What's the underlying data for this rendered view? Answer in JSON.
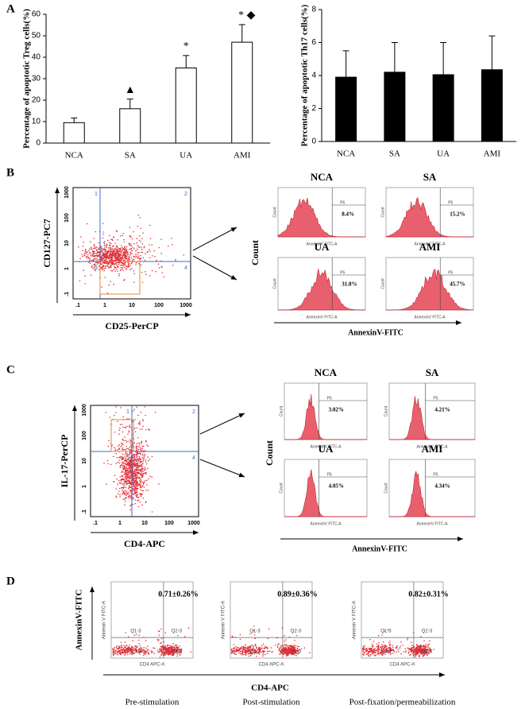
{
  "panel_labels": [
    "A",
    "B",
    "C",
    "D"
  ],
  "chart_data": [
    {
      "type": "bar",
      "y_label": "Percentage of apoptotic Treg cells(%)",
      "categories": [
        "NCA",
        "SA",
        "UA",
        "AMI"
      ],
      "values": [
        9.5,
        16,
        35,
        47
      ],
      "errors": [
        2.2,
        4.5,
        5.8,
        8.2
      ],
      "color": "#ffffff",
      "edgecolor": "#000000",
      "ylim": [
        0,
        60
      ],
      "yticks": [
        0,
        10,
        20,
        30,
        40,
        50,
        60
      ],
      "annotations": [
        {
          "category": "SA",
          "text": "▲"
        },
        {
          "category": "UA",
          "text": "*"
        },
        {
          "category": "AMI",
          "text": "* ◆"
        }
      ]
    },
    {
      "type": "bar",
      "y_label": "Percentage of apoptotic Th17 cells(%)",
      "categories": [
        "NCA",
        "SA",
        "UA",
        "AMI"
      ],
      "values": [
        3.9,
        4.2,
        4.05,
        4.35
      ],
      "errors": [
        1.6,
        1.8,
        1.95,
        2.05
      ],
      "color": "#000000",
      "edgecolor": "#000000",
      "ylim": [
        0,
        8
      ],
      "yticks": [
        0,
        2,
        4,
        6,
        8
      ]
    }
  ],
  "panel_b": {
    "gate": {
      "y_label": "CD127-PC7",
      "x_label": "CD25-PerCP",
      "ticks": [
        ".1",
        "1",
        "10",
        "100",
        "1000"
      ],
      "quadrants": [
        "1",
        "2",
        "3",
        "4"
      ]
    },
    "count_label": "Count",
    "x_label": "AnnexinV-FITC",
    "hist_y_label": "Count",
    "hist_x_label": "AnnexinV FITC-A",
    "gate_name": "P5",
    "histograms": [
      {
        "group": "NCA",
        "percent": "8.4%"
      },
      {
        "group": "SA",
        "percent": "15.2%"
      },
      {
        "group": "UA",
        "percent": "31.8%"
      },
      {
        "group": "AMI",
        "percent": "45.7%"
      }
    ]
  },
  "panel_c": {
    "gate": {
      "y_label": "IL-17-PerCP",
      "x_label": "CD4-APC",
      "ticks": [
        ".1",
        "1",
        "10",
        "100",
        "1000"
      ],
      "quadrants": [
        "1",
        "2",
        "3",
        "4"
      ]
    },
    "count_label": "Count",
    "x_label": "AnnexinV-FITC",
    "hist_y_label": "Count",
    "hist_x_label": "AnnexinV FITC-A",
    "gate_name": "P5",
    "histograms": [
      {
        "group": "NCA",
        "percent": "3.02%"
      },
      {
        "group": "SA",
        "percent": "4.21%"
      },
      {
        "group": "UA",
        "percent": "4.05%"
      },
      {
        "group": "AMI",
        "percent": "4.34%"
      }
    ]
  },
  "panel_d": {
    "y_label": "AnnexinV-FITC",
    "x_label": "CD4-APC",
    "plot_x_label": "CD4 APC-A",
    "plot_y_label": "Annexin V FITC-A",
    "quadrants": [
      "Q1-3",
      "Q2-3",
      "Q3-3",
      "Q4-3"
    ],
    "plots": [
      {
        "caption": "Pre-stimulation",
        "value": "0.71±0.26%"
      },
      {
        "caption": "Post-stimulation",
        "value": "0.89±0.36%"
      },
      {
        "caption": "Post-fixation/permeabilization",
        "value": "0.82±0.31%"
      }
    ]
  }
}
